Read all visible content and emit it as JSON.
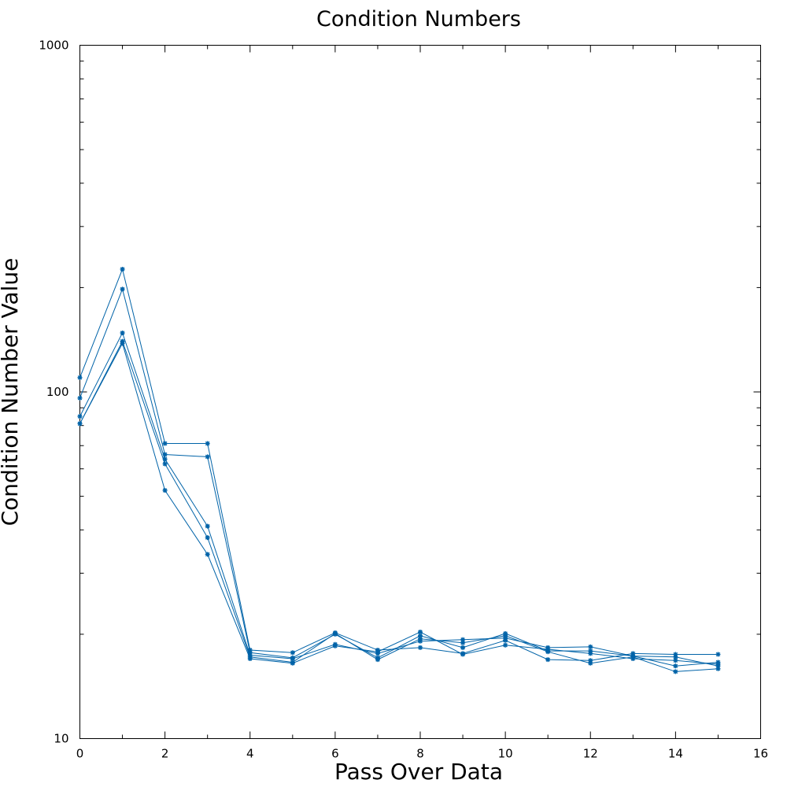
{
  "chart_data": {
    "type": "line",
    "title": "Condition Numbers",
    "xlabel": "Pass Over Data",
    "ylabel": "Condition Number Value",
    "xlim": [
      0,
      16
    ],
    "ylim": [
      10,
      1000
    ],
    "yscale": "log",
    "xticks": [
      0,
      2,
      4,
      6,
      8,
      10,
      12,
      14,
      16
    ],
    "xtick_labels": [
      "0",
      "2",
      "4",
      "6",
      "8",
      "10",
      "12",
      "14",
      "16"
    ],
    "yticks": [
      10,
      100,
      1000
    ],
    "ytick_labels": [
      "10",
      "100",
      "1000"
    ],
    "grid": false,
    "legend": "none",
    "color": "#0063a8",
    "marker": "asterisk",
    "x": [
      0,
      1,
      2,
      3,
      4,
      5,
      6,
      7,
      8,
      9,
      10,
      11,
      12,
      13,
      14,
      15
    ],
    "series": [
      {
        "values": [
          110,
          226,
          71,
          71,
          18.0,
          17.7,
          20.2,
          18.0,
          18.3,
          17.6,
          19.2,
          16.9,
          16.8,
          17.6,
          17.5,
          17.5
        ]
      },
      {
        "values": [
          96,
          198,
          66,
          65,
          17.7,
          17.1,
          20.0,
          17.1,
          19.8,
          18.3,
          20.1,
          17.9,
          17.9,
          17.3,
          17.2,
          16.2
        ]
      },
      {
        "values": [
          85,
          148,
          64,
          41,
          17.4,
          17.0,
          18.7,
          17.6,
          19.1,
          19.3,
          19.5,
          18.3,
          18.4,
          17.3,
          16.2,
          16.6
        ]
      },
      {
        "values": [
          81,
          138,
          52,
          34,
          17.0,
          16.5,
          18.5,
          17.8,
          20.3,
          17.5,
          18.6,
          18.1,
          17.6,
          17.0,
          16.8,
          16.4
        ]
      },
      {
        "values": [
          81,
          140,
          62,
          38,
          17.2,
          16.6,
          20.1,
          16.9,
          19.4,
          18.9,
          19.8,
          17.8,
          16.5,
          17.2,
          15.6,
          15.9
        ]
      }
    ]
  }
}
